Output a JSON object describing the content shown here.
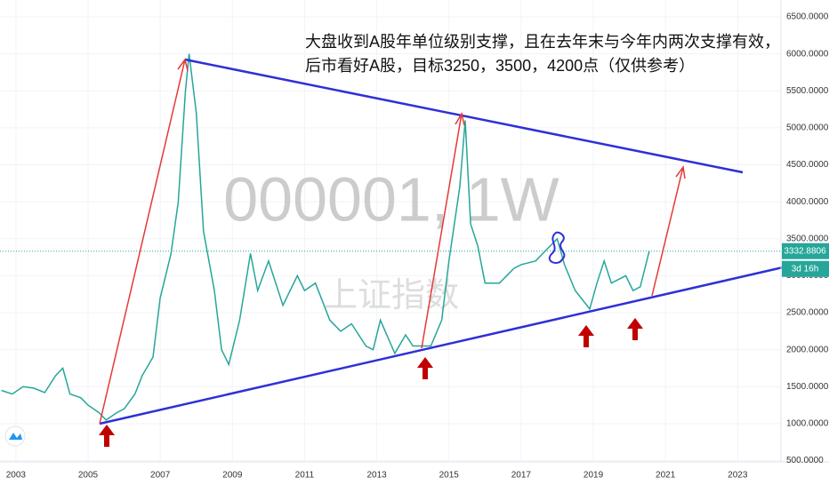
{
  "chart_data": {
    "type": "line",
    "watermark": "000001, 1W",
    "watermark_sub": "上证指数",
    "annotation": [
      "大盘收到A股年单位级别支撑，且在去年末与今年内两次支撑有效，",
      "后市看好A股，目标3250，3500，4200点（仅供参考）"
    ],
    "x": [
      2002.6,
      2002.9,
      2003.2,
      2003.5,
      2003.8,
      2004.1,
      2004.3,
      2004.5,
      2004.8,
      2005.0,
      2005.3,
      2005.5,
      2005.8,
      2006.0,
      2006.3,
      2006.5,
      2006.8,
      2007.0,
      2007.3,
      2007.5,
      2007.7,
      2007.8,
      2008.0,
      2008.2,
      2008.5,
      2008.7,
      2008.9,
      2009.2,
      2009.5,
      2009.7,
      2010.0,
      2010.4,
      2010.8,
      2011.0,
      2011.3,
      2011.7,
      2012.0,
      2012.3,
      2012.7,
      2012.9,
      2013.1,
      2013.5,
      2013.8,
      2014.0,
      2014.5,
      2014.8,
      2015.0,
      2015.3,
      2015.45,
      2015.6,
      2015.8,
      2016.0,
      2016.4,
      2016.8,
      2017.0,
      2017.4,
      2017.8,
      2018.0,
      2018.2,
      2018.5,
      2018.9,
      2019.1,
      2019.3,
      2019.5,
      2019.9,
      2020.1,
      2020.3,
      2020.55
    ],
    "values": [
      1450,
      1400,
      1500,
      1480,
      1420,
      1650,
      1750,
      1400,
      1350,
      1250,
      1150,
      1050,
      1150,
      1200,
      1400,
      1650,
      1900,
      2700,
      3300,
      4000,
      5500,
      6000,
      5200,
      3600,
      2800,
      2000,
      1800,
      2400,
      3300,
      2800,
      3200,
      2600,
      3000,
      2800,
      2900,
      2400,
      2250,
      2350,
      2050,
      2000,
      2400,
      1950,
      2200,
      2050,
      2050,
      2400,
      3200,
      4200,
      5100,
      3700,
      3400,
      2900,
      2900,
      3100,
      3150,
      3200,
      3400,
      3500,
      3150,
      2800,
      2550,
      2900,
      3200,
      2900,
      3000,
      2800,
      2850,
      3332.8806
    ],
    "color": "#26a69a",
    "last_price": 3332.8806,
    "countdown": "3d 16h",
    "xlim": [
      2002.56,
      2024.2
    ],
    "ylim": [
      483,
      6728
    ],
    "xticks": [
      2003,
      2005,
      2007,
      2009,
      2011,
      2013,
      2015,
      2017,
      2019,
      2021,
      2023
    ],
    "yticks": [
      {
        "value": 500,
        "label": "500.0000"
      },
      {
        "value": 1000,
        "label": "1000.0000"
      },
      {
        "value": 1500,
        "label": "1500.0000"
      },
      {
        "value": 2000,
        "label": "2000.0000"
      },
      {
        "value": 2500,
        "label": "2500.0000"
      },
      {
        "value": 3000,
        "label": "3000.0000"
      },
      {
        "value": 3500,
        "label": "3500.0000"
      },
      {
        "value": 4000,
        "label": "4000.0000"
      },
      {
        "value": 4500,
        "label": "4500.0000"
      },
      {
        "value": 5000,
        "label": "5000.0000"
      },
      {
        "value": 5500,
        "label": "5500.0000"
      },
      {
        "value": 6000,
        "label": "6000.0000"
      },
      {
        "value": 6500,
        "label": "6500.0000"
      }
    ],
    "grid": true
  }
}
